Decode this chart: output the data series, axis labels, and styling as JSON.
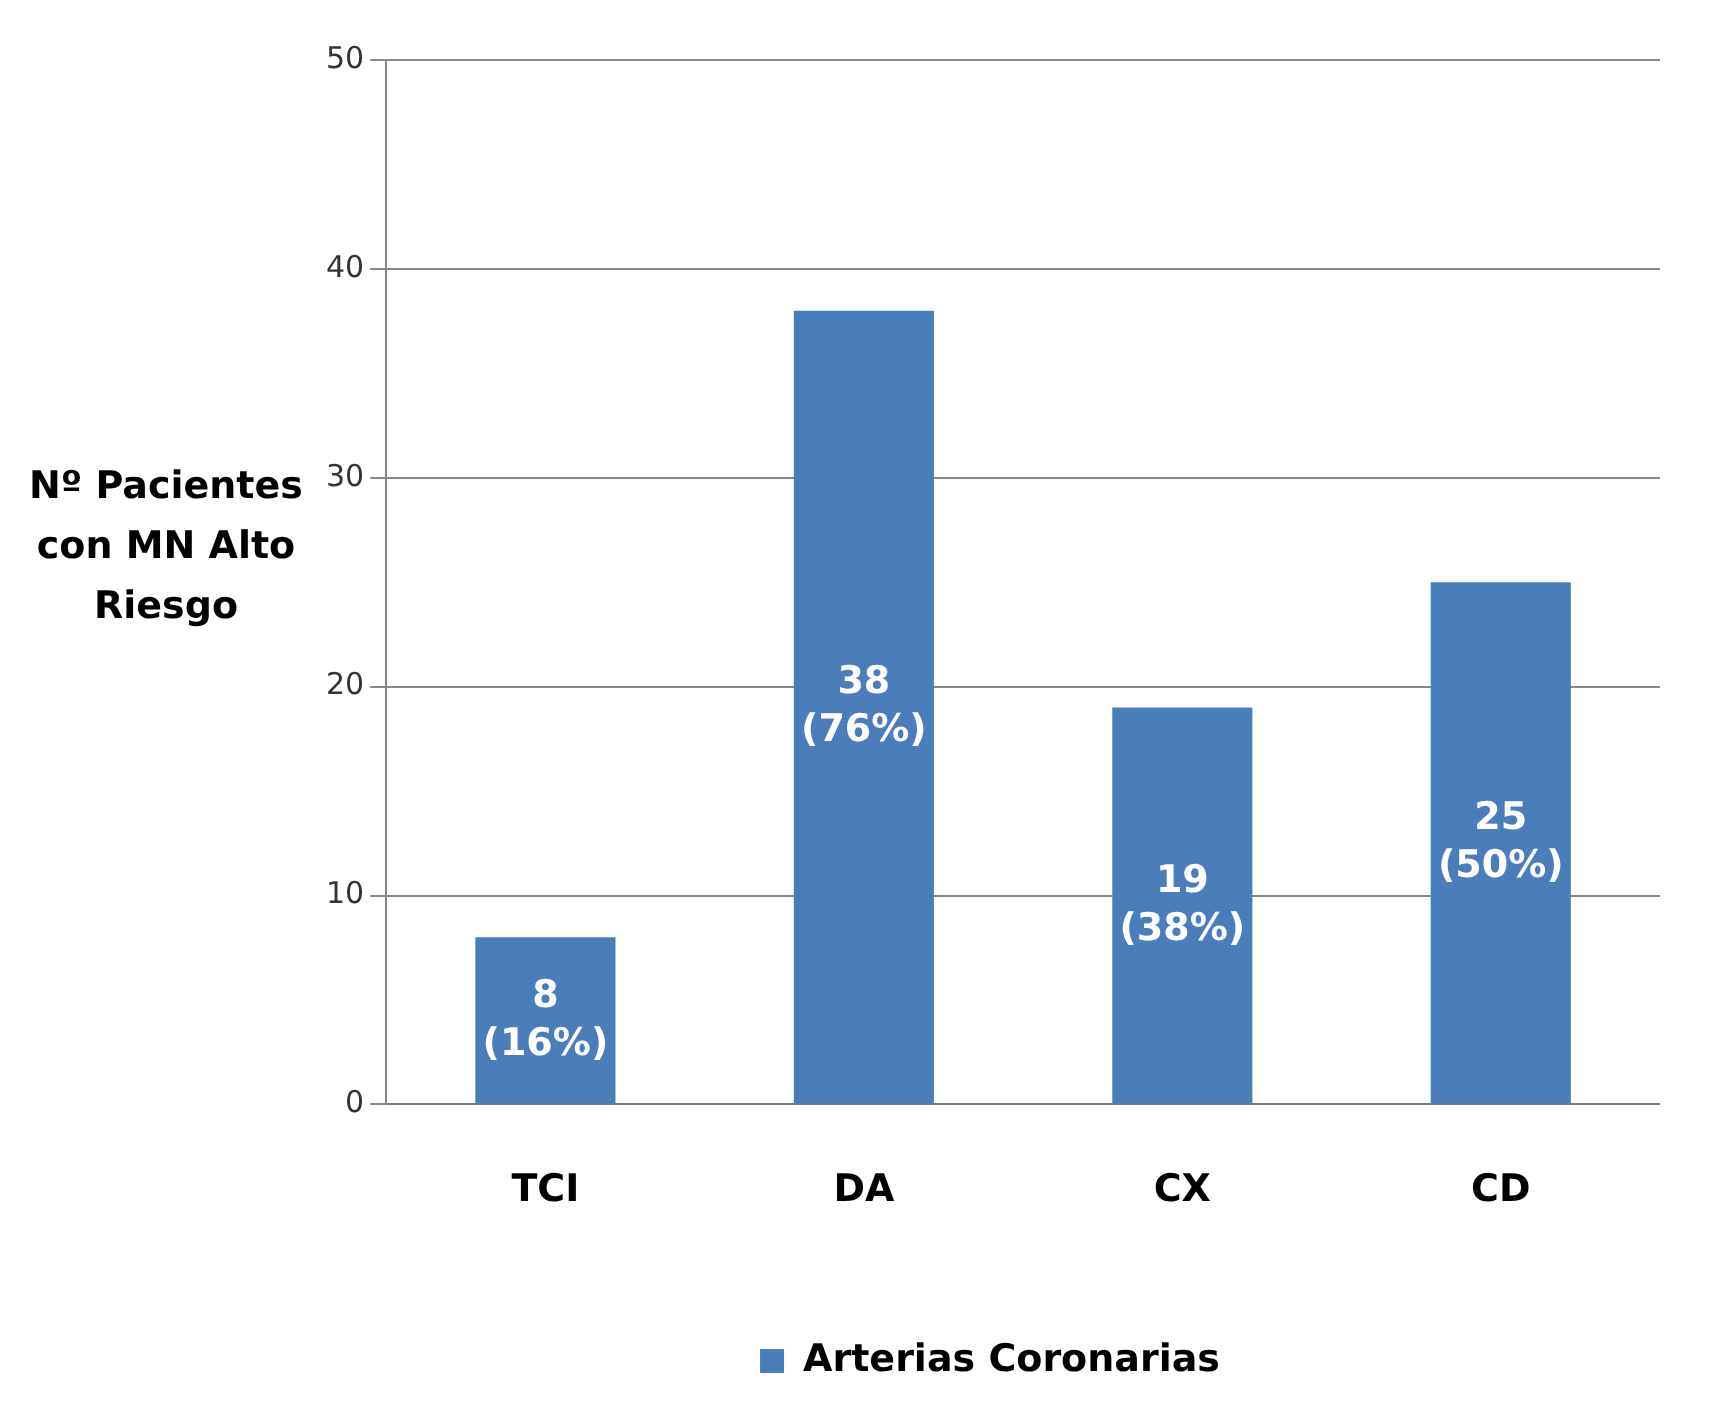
{
  "chart_data": {
    "type": "bar",
    "ylabel": "Nº Pacientes con MN Alto Riesgo",
    "categories": [
      "TCI",
      "DA",
      "CX",
      "CD"
    ],
    "series": [
      {
        "name": "Arterias Coronarias",
        "color": "#4a7ebb",
        "values": [
          8,
          38,
          19,
          25
        ],
        "value_labels": [
          "8 (16%)",
          "38 (76%)",
          "19 (38%)",
          "25 (50%)"
        ]
      }
    ],
    "ylim": [
      0,
      50
    ],
    "yticks": [
      0,
      10,
      20,
      30,
      40,
      50
    ],
    "grid": "y",
    "legend": "bottom"
  }
}
